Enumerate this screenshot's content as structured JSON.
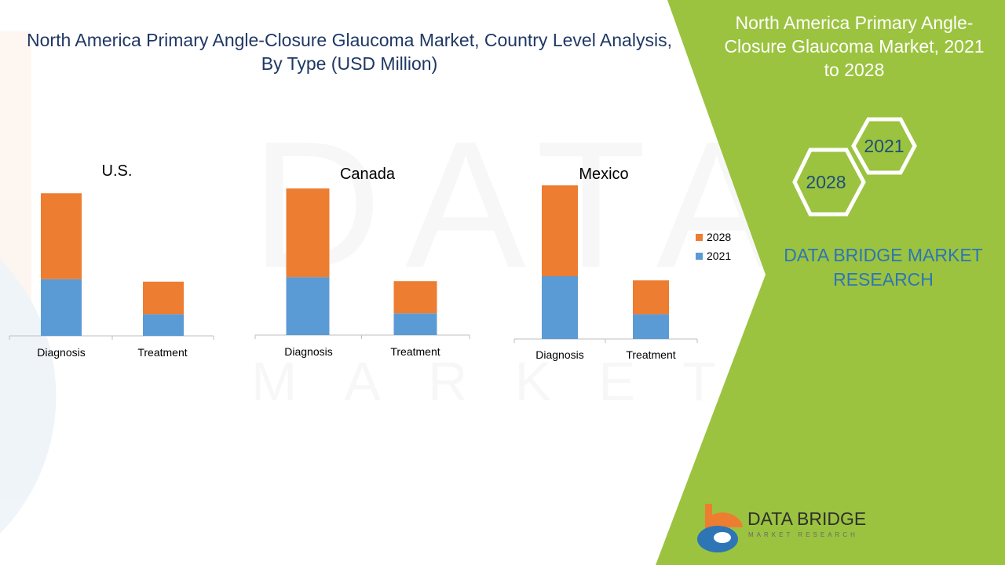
{
  "title": "North America Primary Angle-Closure Glaucoma Market, Country Level Analysis, By Type (USD Million)",
  "side_panel": {
    "title": "North America Primary Angle-Closure Glaucoma Market, 2021 to 2028",
    "hex_small": "2021",
    "hex_large": "2028",
    "brand": "DATA BRIDGE MARKET RESEARCH"
  },
  "logo": {
    "name": "DATA BRIDGE",
    "sub": "MARKET RESEARCH"
  },
  "watermark": {
    "line1": "DATA BRIDGE",
    "line2": "MARKET RESEARCH"
  },
  "colors": {
    "series_2021": "#5b9bd5",
    "series_2028": "#ed7d31",
    "panel_green": "#9bc33f",
    "title_blue": "#1f3864",
    "brand_blue": "#2e75b6"
  },
  "legend": [
    "2028",
    "2021"
  ],
  "chart_data": [
    {
      "type": "bar",
      "stacked": true,
      "title": "U.S.",
      "categories": [
        "Diagnosis",
        "Treatment"
      ],
      "series": [
        {
          "name": "2021",
          "values": [
            68,
            26
          ]
        },
        {
          "name": "2028",
          "values": [
            103,
            39
          ]
        }
      ],
      "ylim": [
        0,
        175
      ]
    },
    {
      "type": "bar",
      "stacked": true,
      "title": "Canada",
      "categories": [
        "Diagnosis",
        "Treatment"
      ],
      "series": [
        {
          "name": "2021",
          "values": [
            72,
            27
          ]
        },
        {
          "name": "2028",
          "values": [
            110,
            40
          ]
        }
      ],
      "ylim": [
        0,
        190
      ]
    },
    {
      "type": "bar",
      "stacked": true,
      "title": "Mexico",
      "categories": [
        "Diagnosis",
        "Treatment"
      ],
      "series": [
        {
          "name": "2021",
          "values": [
            76,
            30
          ]
        },
        {
          "name": "2028",
          "values": [
            110,
            41
          ]
        }
      ],
      "ylim": [
        0,
        190
      ]
    }
  ]
}
